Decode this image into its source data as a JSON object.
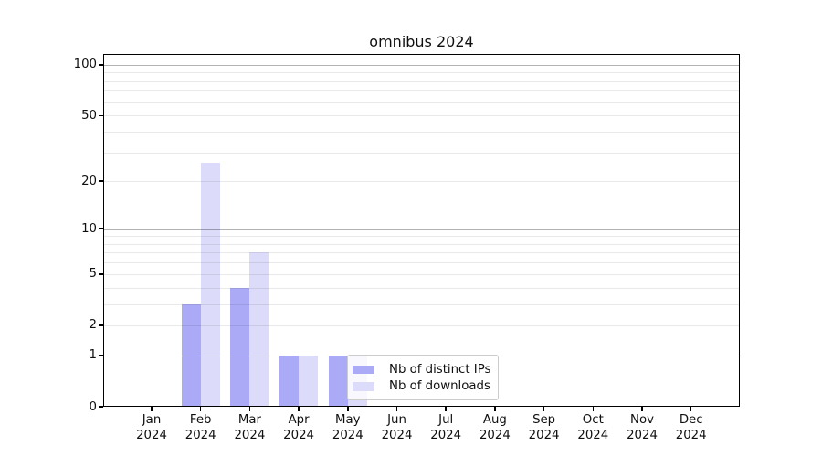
{
  "chart_data": {
    "type": "bar",
    "title": "omnibus 2024",
    "x_axis": {
      "categories": [
        "Jan",
        "Feb",
        "Mar",
        "Apr",
        "May",
        "Jun",
        "Jul",
        "Aug",
        "Sep",
        "Oct",
        "Nov",
        "Dec"
      ],
      "year": "2024"
    },
    "y_axis": {
      "scale": "log1p",
      "tick_values": [
        0,
        1,
        2,
        5,
        10,
        20,
        50,
        100
      ],
      "major_gridlines": [
        1,
        10,
        100
      ],
      "minor_gridlines": [
        2,
        3,
        4,
        5,
        6,
        7,
        8,
        9,
        20,
        30,
        40,
        50,
        60,
        70,
        80,
        90
      ],
      "range_max": 116,
      "ylim": [
        0,
        116
      ]
    },
    "series": [
      {
        "name": "Nb of distinct IPs",
        "color": "#aaaaf6",
        "values": [
          0,
          3,
          4,
          1,
          1,
          0,
          0,
          0,
          0,
          0,
          0,
          0
        ]
      },
      {
        "name": "Nb of downloads",
        "color": "#dcdcfa",
        "values": [
          0,
          26,
          7,
          1,
          1,
          0,
          0,
          0,
          0,
          0,
          0,
          0
        ]
      }
    ],
    "legend": {
      "position": "lower center",
      "entries": [
        "Nb of distinct IPs",
        "Nb of downloads"
      ]
    },
    "colors": {
      "background": "#ffffff",
      "spine": "#000000",
      "major_grid": "rgba(0,0,0,0.30)",
      "minor_grid": "rgba(0,0,0,0.085)",
      "text": "#0f0f0f",
      "legend_border": "#cccccc"
    },
    "grid": "on"
  }
}
